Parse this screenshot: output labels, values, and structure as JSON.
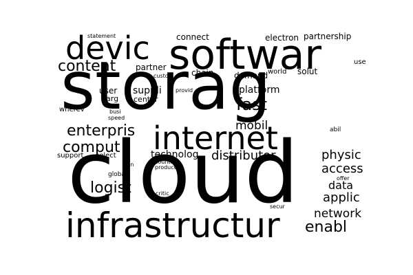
{
  "colors": {
    "background": "#ffffff",
    "text": "#000000"
  },
  "words": [
    "storag",
    "cloud",
    "softwar",
    "internet",
    "infrastructur",
    "devic",
    "content",
    "enterpris",
    "comput",
    "logist",
    "fast",
    "mobil",
    "distributor",
    "physic",
    "access",
    "data",
    "applic",
    "network",
    "enabl",
    "technolog",
    "connect",
    "electron",
    "partnership",
    "partner",
    "solut",
    "chain",
    "demand",
    "platform",
    "suppli",
    "center",
    "user",
    "larg",
    "world",
    "use",
    "custom",
    "provid",
    "wherev",
    "busi",
    "speed",
    "statement",
    "support",
    "select",
    "global",
    "countri",
    "product",
    "run",
    "offer",
    "critic",
    "abil",
    "secur"
  ]
}
